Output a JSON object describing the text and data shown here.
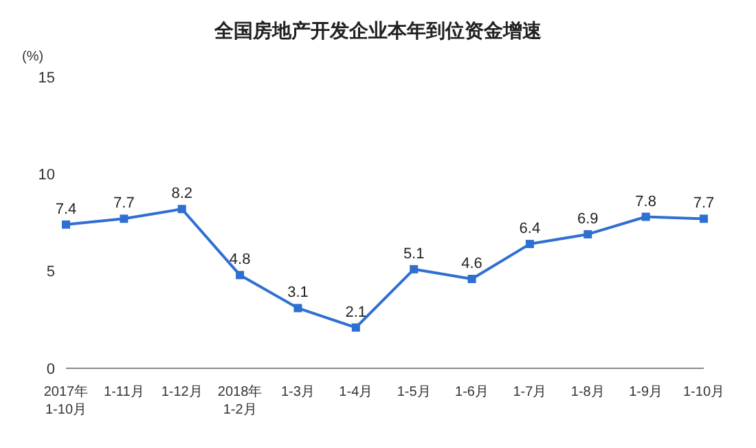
{
  "chart_data": {
    "type": "line",
    "title": "全国房地产开发企业本年到位资金增速",
    "ylabel": "(%)",
    "categories": [
      "2017年\n1-10月",
      "1-11月",
      "1-12月",
      "2018年\n1-2月",
      "1-3月",
      "1-4月",
      "1-5月",
      "1-6月",
      "1-7月",
      "1-8月",
      "1-9月",
      "1-10月"
    ],
    "series": [
      {
        "color": "#2e6fd1",
        "values": [
          7.4,
          7.7,
          8.2,
          4.8,
          3.1,
          2.1,
          5.1,
          4.6,
          6.4,
          6.9,
          7.8,
          7.7
        ]
      }
    ],
    "ylim": [
      0,
      15
    ],
    "yticks": [
      0,
      5,
      10,
      15
    ],
    "grid": false,
    "legend": false,
    "marker": "square",
    "line_style": "solid",
    "data_labels": true
  }
}
